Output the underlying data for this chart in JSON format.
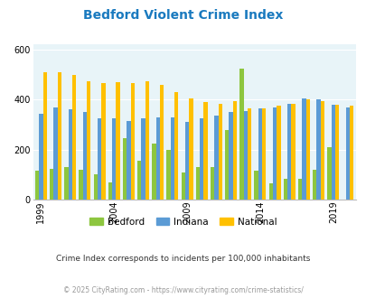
{
  "title": "Bedford Violent Crime Index",
  "years": [
    1999,
    2000,
    2001,
    2002,
    2003,
    2004,
    2005,
    2006,
    2007,
    2008,
    2009,
    2010,
    2011,
    2012,
    2013,
    2014,
    2015,
    2016,
    2017,
    2018,
    2019,
    2020
  ],
  "bedford": [
    115,
    125,
    130,
    120,
    100,
    70,
    245,
    155,
    225,
    200,
    110,
    130,
    130,
    280,
    525,
    115,
    65,
    85,
    85,
    120,
    210,
    0
  ],
  "indiana": [
    345,
    370,
    360,
    350,
    325,
    325,
    315,
    325,
    330,
    330,
    310,
    325,
    335,
    350,
    355,
    365,
    370,
    385,
    405,
    400,
    380,
    370
  ],
  "national": [
    510,
    510,
    500,
    475,
    465,
    470,
    465,
    475,
    460,
    430,
    405,
    390,
    385,
    395,
    365,
    365,
    375,
    385,
    400,
    395,
    380,
    375
  ],
  "bedford_color": "#8dc63f",
  "indiana_color": "#5b9bd5",
  "national_color": "#ffc000",
  "bg_color": "#e8f4f8",
  "title_color": "#1a7abf",
  "subtitle": "Crime Index corresponds to incidents per 100,000 inhabitants",
  "footer": "© 2025 CityRating.com - https://www.cityrating.com/crime-statistics/",
  "subtitle_color": "#333333",
  "footer_color": "#999999",
  "tick_years": [
    1999,
    2004,
    2009,
    2014,
    2019
  ]
}
